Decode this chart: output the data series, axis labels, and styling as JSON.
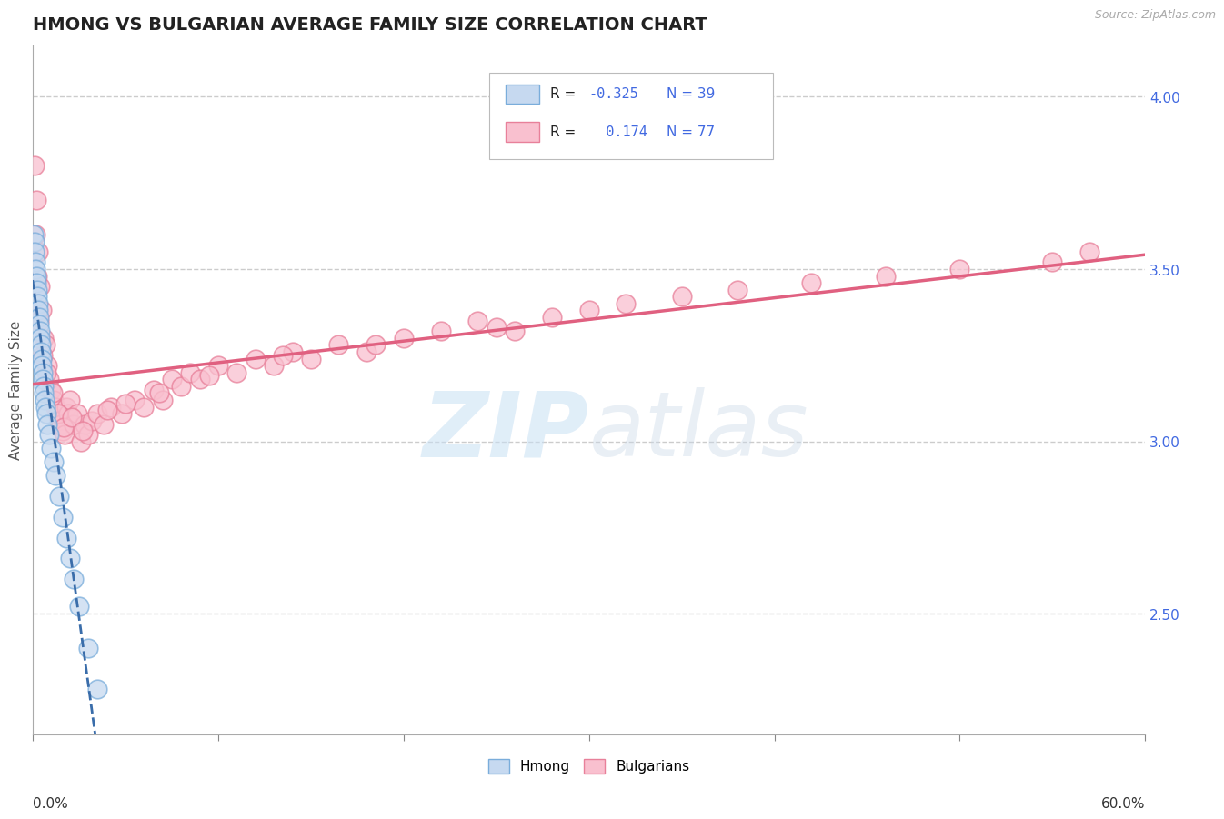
{
  "title": "HMONG VS BULGARIAN AVERAGE FAMILY SIZE CORRELATION CHART",
  "source_text": "Source: ZipAtlas.com",
  "ylabel": "Average Family Size",
  "watermark_zip": "ZIP",
  "watermark_atlas": "atlas",
  "xmin": 0.0,
  "xmax": 60.0,
  "ymin": 2.15,
  "ymax": 4.15,
  "yticks_right": [
    2.5,
    3.0,
    3.5,
    4.0
  ],
  "hmong_color": "#c6d9f0",
  "hmong_edge_color": "#7aaddb",
  "bulgarian_color": "#f9c0cf",
  "bulgarian_edge_color": "#e8809a",
  "hmong_R": -0.325,
  "hmong_N": 39,
  "bulgarian_R": 0.174,
  "bulgarian_N": 77,
  "hmong_line_color": "#3a6daa",
  "bulgarian_line_color": "#e06080",
  "grid_color": "#cccccc",
  "title_color": "#222222",
  "title_fontsize": 14,
  "right_tick_color": "#4169E1",
  "hmong_x": [
    0.05,
    0.08,
    0.1,
    0.12,
    0.15,
    0.18,
    0.2,
    0.22,
    0.25,
    0.28,
    0.3,
    0.32,
    0.35,
    0.38,
    0.4,
    0.42,
    0.45,
    0.48,
    0.5,
    0.52,
    0.55,
    0.58,
    0.6,
    0.65,
    0.7,
    0.75,
    0.8,
    0.9,
    1.0,
    1.1,
    1.2,
    1.4,
    1.6,
    1.8,
    2.0,
    2.2,
    2.5,
    3.0,
    3.5
  ],
  "hmong_y": [
    3.6,
    3.58,
    3.55,
    3.52,
    3.5,
    3.48,
    3.46,
    3.44,
    3.42,
    3.4,
    3.38,
    3.36,
    3.34,
    3.32,
    3.3,
    3.28,
    3.26,
    3.24,
    3.22,
    3.2,
    3.18,
    3.16,
    3.14,
    3.12,
    3.1,
    3.08,
    3.05,
    3.02,
    2.98,
    2.94,
    2.9,
    2.84,
    2.78,
    2.72,
    2.66,
    2.6,
    2.52,
    2.4,
    2.28
  ],
  "bulgarian_x": [
    0.1,
    0.2,
    0.3,
    0.4,
    0.5,
    0.6,
    0.7,
    0.8,
    0.9,
    1.0,
    1.1,
    1.2,
    1.3,
    1.4,
    1.5,
    1.6,
    1.7,
    1.8,
    1.9,
    2.0,
    2.2,
    2.4,
    2.6,
    2.8,
    3.0,
    3.2,
    3.5,
    3.8,
    4.2,
    4.8,
    5.5,
    6.0,
    6.5,
    7.0,
    7.5,
    8.0,
    8.5,
    9.0,
    10.0,
    11.0,
    12.0,
    13.0,
    14.0,
    15.0,
    16.5,
    18.0,
    20.0,
    22.0,
    24.0,
    26.0,
    28.0,
    30.0,
    32.0,
    35.0,
    38.0,
    42.0,
    46.0,
    50.0,
    55.0,
    57.0,
    0.15,
    0.25,
    0.35,
    0.55,
    0.75,
    1.05,
    1.35,
    1.65,
    2.1,
    2.7,
    4.0,
    5.0,
    6.8,
    9.5,
    13.5,
    18.5,
    25.0
  ],
  "bulgarian_y": [
    3.8,
    3.7,
    3.55,
    3.45,
    3.38,
    3.3,
    3.28,
    3.22,
    3.18,
    3.15,
    3.12,
    3.1,
    3.08,
    3.06,
    3.05,
    3.03,
    3.02,
    3.1,
    3.08,
    3.12,
    3.05,
    3.08,
    3.0,
    3.05,
    3.02,
    3.06,
    3.08,
    3.05,
    3.1,
    3.08,
    3.12,
    3.1,
    3.15,
    3.12,
    3.18,
    3.16,
    3.2,
    3.18,
    3.22,
    3.2,
    3.24,
    3.22,
    3.26,
    3.24,
    3.28,
    3.26,
    3.3,
    3.32,
    3.35,
    3.32,
    3.36,
    3.38,
    3.4,
    3.42,
    3.44,
    3.46,
    3.48,
    3.5,
    3.52,
    3.55,
    3.6,
    3.48,
    3.35,
    3.25,
    3.2,
    3.14,
    3.08,
    3.04,
    3.07,
    3.03,
    3.09,
    3.11,
    3.14,
    3.19,
    3.25,
    3.28,
    3.33
  ]
}
